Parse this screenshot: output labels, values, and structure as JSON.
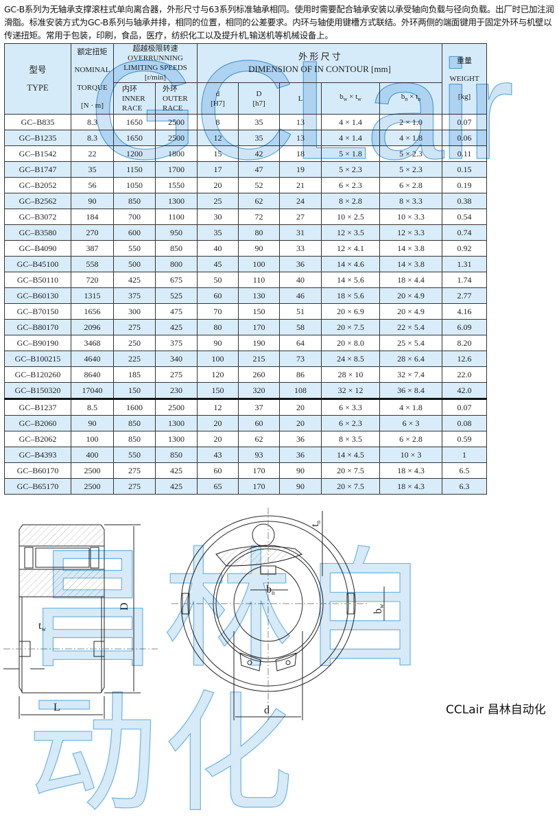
{
  "intro": "GC-B系列为无轴承支撑滚柱式单向离合器，外形尺寸与63系列标准轴承相同。使用时需要配合轴承安装以承受轴向负载与径向负载。出厂时已加注润滑脂。标准安装方式为GC-B系列与轴承并排，相同的位置，相同的公差要求。内环与轴使用键槽方式联结。外环两侧的端面键用于固定外环与机壁以传递扭矩。常用于包装，印刷，食品，医疗，纺织化工以及提升机,输送机等机械设备上。",
  "table": {
    "headers": {
      "type_cn": "型号",
      "type_en": "TYPE",
      "torque_cn": "额定扭矩",
      "torque_en1": "NOMINAL",
      "torque_en2": "TORQUE",
      "torque_unit": "[N · m]",
      "speed_cn": "超越极限转速",
      "speed_en1": "OVERRUNNING",
      "speed_en2": "LIMITING SPEEDS",
      "speed_unit": "[r/min]",
      "inner_cn": "内环",
      "inner_en1": "INNER",
      "inner_en2": "RACE",
      "outer_cn": "外环",
      "outer_en1": "OUTER",
      "outer_en2": "RACE",
      "dim_cn": "外 形 尺 寸",
      "dim_en": "DIMENSION OF IN CONTOUR [mm]",
      "d": "d",
      "d_tol": "[H7]",
      "D": "D",
      "D_tol": "[h7]",
      "L": "L",
      "bw": "b",
      "bw_sub": "w",
      "tw": "t",
      "tw_sub": "w",
      "x": " × ",
      "bn": "b",
      "bn_sub": "n",
      "tn": "t",
      "tn_sub": "n",
      "weight_cn": "重量",
      "weight_en": "WEIGHT",
      "weight_unit": "[kg]"
    },
    "rows": [
      [
        "GC–B835",
        "8.3",
        "1650",
        "2500",
        "8",
        "35",
        "13",
        "4 × 1.4",
        "2 × 1.0",
        "0.07"
      ],
      [
        "GC–B1235",
        "8.3",
        "1650",
        "2500",
        "12",
        "35",
        "13",
        "4 × 1.4",
        "4 × 1.8",
        "0.06"
      ],
      [
        "GC–B1542",
        "22",
        "1200",
        "1800",
        "15",
        "42",
        "18",
        "5 × 1.8",
        "5 × 2.3",
        "0.11"
      ],
      [
        "GC–B1747",
        "35",
        "1150",
        "1700",
        "17",
        "47",
        "19",
        "5 × 2.3",
        "5 × 2.3",
        "0.15"
      ],
      [
        "GC–B2052",
        "56",
        "1050",
        "1550",
        "20",
        "52",
        "21",
        "6 × 2.3",
        "6 × 2.8",
        "0.19"
      ],
      [
        "GC–B2562",
        "90",
        "850",
        "1300",
        "25",
        "62",
        "24",
        "8 × 2.8",
        "8 × 3.3",
        "0.38"
      ],
      [
        "GC–B3072",
        "184",
        "700",
        "1100",
        "30",
        "72",
        "27",
        "10 × 2.5",
        "10 × 3.3",
        "0.54"
      ],
      [
        "GC–B3580",
        "270",
        "600",
        "950",
        "35",
        "80",
        "31",
        "12 × 3.5",
        "12 × 3.3",
        "0.74"
      ],
      [
        "GC–B4090",
        "387",
        "550",
        "850",
        "40",
        "90",
        "33",
        "12 × 4.1",
        "14 × 3.8",
        "0.92"
      ],
      [
        "GC–B45100",
        "558",
        "500",
        "800",
        "45",
        "100",
        "36",
        "14 × 4.6",
        "14 × 3.8",
        "1.31"
      ],
      [
        "GC–B50110",
        "720",
        "425",
        "675",
        "50",
        "110",
        "40",
        "14 × 5.6",
        "18 × 4.4",
        "1.74"
      ],
      [
        "GC–B60130",
        "1315",
        "375",
        "525",
        "60",
        "130",
        "46",
        "18 × 5.6",
        "20 × 4.9",
        "2.77"
      ],
      [
        "GC–B70150",
        "1656",
        "300",
        "475",
        "70",
        "150",
        "51",
        "20 × 6.9",
        "20 × 4.9",
        "4.16"
      ],
      [
        "GC–B80170",
        "2096",
        "275",
        "425",
        "80",
        "170",
        "58",
        "20 × 7.5",
        "22 × 5.4",
        "6.09"
      ],
      [
        "GC–B90190",
        "3468",
        "250",
        "375",
        "90",
        "190",
        "64",
        "20 × 8.0",
        "25 × 5.4",
        "8.20"
      ],
      [
        "GC–B100215",
        "4640",
        "225",
        "340",
        "100",
        "215",
        "73",
        "24 × 8.5",
        "28 × 6.4",
        "12.6"
      ],
      [
        "GC–B120260",
        "8640",
        "185",
        "275",
        "120",
        "260",
        "86",
        "28 × 10",
        "32 × 7.4",
        "22.0"
      ],
      [
        "GC–B150320",
        "17040",
        "150",
        "230",
        "150",
        "320",
        "108",
        "32 × 12",
        "36 × 8.4",
        "42.0"
      ],
      [
        "GC–B1237",
        "8.5",
        "1600",
        "2500",
        "12",
        "37",
        "20",
        "6 × 3.3",
        "4 × 1.8",
        "0.07"
      ],
      [
        "GC–B2060",
        "90",
        "850",
        "1300",
        "20",
        "60",
        "20",
        "6 × 2.3",
        "6 × 3",
        "0.08"
      ],
      [
        "GC–B2062",
        "100",
        "850",
        "1300",
        "20",
        "62",
        "36",
        "8 × 3.5",
        "6 × 2.8",
        "0.59"
      ],
      [
        "GC–B4393",
        "400",
        "550",
        "850",
        "43",
        "93",
        "36",
        "14 × 4.5",
        "10 × 3",
        "1"
      ],
      [
        "GC–B60170",
        "2500",
        "275",
        "425",
        "60",
        "170",
        "90",
        "20 × 7.5",
        "18 × 4.3",
        "6.5"
      ],
      [
        "GC–B65170",
        "2500",
        "275",
        "425",
        "65",
        "170",
        "90",
        "20 × 7.5",
        "18 × 4.3",
        "6.3"
      ]
    ],
    "group_break_before_row": 18
  },
  "drawing": {
    "labels": {
      "L": "L",
      "D": "D",
      "d": "d",
      "tw": "t",
      "tw_sub": "w",
      "tn": "t",
      "tn_sub": "n",
      "bn": "b",
      "bn_sub": "n",
      "bw": "b",
      "bw_sub": "w"
    }
  },
  "watermarks": {
    "table": "GCLair",
    "drawing": "昌林自动化"
  },
  "logo": "CCLair 昌林自动化",
  "colors": {
    "header_bg": "#d6ebf9",
    "stripe_bg": "#d9ecfa",
    "watermark": "#5fa8dc"
  }
}
